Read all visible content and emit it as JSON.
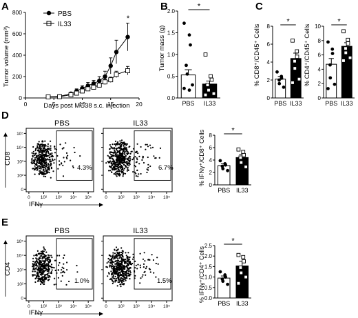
{
  "panel_letters": [
    "A",
    "B",
    "C",
    "D",
    "E"
  ],
  "chart_data": [
    {
      "panel": "A",
      "type": "line",
      "xlabel": "Days post MC38 s.c. injection",
      "ylabel": "Tumor volume (mm³)",
      "xlim": [
        0,
        20
      ],
      "xticks": [
        0,
        5,
        10,
        15,
        20
      ],
      "ylim": [
        0,
        800
      ],
      "yticks": [
        0,
        200,
        400,
        600,
        800
      ],
      "significance": [
        {
          "x": 18,
          "label": "*"
        }
      ],
      "series": [
        {
          "name": "PBS",
          "marker": "circle-filled",
          "x": [
            4,
            6,
            8,
            9,
            10,
            11,
            12,
            13,
            14,
            15,
            16,
            18
          ],
          "y": [
            10,
            15,
            40,
            65,
            90,
            115,
            135,
            160,
            200,
            300,
            430,
            570
          ],
          "err": [
            5,
            8,
            15,
            20,
            25,
            30,
            30,
            40,
            50,
            75,
            110,
            130
          ]
        },
        {
          "name": "IL33",
          "marker": "square-open",
          "x": [
            4,
            6,
            8,
            9,
            10,
            11,
            12,
            13,
            14,
            15,
            16,
            18
          ],
          "y": [
            10,
            12,
            30,
            45,
            65,
            85,
            100,
            120,
            150,
            170,
            220,
            255
          ],
          "err": [
            5,
            6,
            10,
            14,
            15,
            20,
            20,
            20,
            25,
            25,
            30,
            40
          ]
        }
      ]
    },
    {
      "panel": "B",
      "type": "bar",
      "ylabel": "Tumor mass (g)",
      "ylim": [
        0,
        2.0
      ],
      "yticks": [
        0.0,
        0.5,
        1.0,
        1.5,
        2.0
      ],
      "categories": [
        "PBS",
        "IL33"
      ],
      "values": [
        0.53,
        0.32
      ],
      "err": [
        0.12,
        0.07
      ],
      "fills": [
        "#ffffff",
        "#000000"
      ],
      "markers": [
        "circle-filled",
        "square-open"
      ],
      "points": [
        [
          1.72,
          1.45,
          1.22,
          0.75,
          0.55,
          0.3,
          0.22,
          0.18
        ],
        [
          1.0,
          0.5,
          0.42,
          0.3,
          0.18,
          0.1,
          0.07
        ]
      ],
      "significance": "*"
    },
    {
      "panel": "C1",
      "type": "bar",
      "ylabel": "% CD8⁺/CD45⁺ Cells",
      "ylim": [
        0,
        8
      ],
      "yticks": [
        0,
        2,
        4,
        6,
        8
      ],
      "categories": [
        "PBS",
        "IL33"
      ],
      "values": [
        2.1,
        4.4
      ],
      "err": [
        0.3,
        0.6
      ],
      "fills": [
        "#ffffff",
        "#000000"
      ],
      "markers": [
        "circle-filled",
        "square-open"
      ],
      "points": [
        [
          2.9,
          2.4,
          2.2,
          2.0,
          1.6,
          1.2
        ],
        [
          6.4,
          5.2,
          4.6,
          4.1,
          3.3,
          2.1,
          1.7
        ]
      ],
      "significance": "*"
    },
    {
      "panel": "C2",
      "type": "bar",
      "ylabel": "% CD4⁺/CD45⁺ Cells",
      "ylim": [
        0,
        10
      ],
      "yticks": [
        0,
        2,
        4,
        6,
        8,
        10
      ],
      "categories": [
        "PBS",
        "IL33"
      ],
      "values": [
        4.7,
        7.2
      ],
      "err": [
        0.8,
        0.5
      ],
      "fills": [
        "#ffffff",
        "#000000"
      ],
      "markers": [
        "circle-filled",
        "square-open"
      ],
      "points": [
        [
          7.8,
          6.8,
          6.2,
          4.6,
          2.8,
          1.9,
          1.3
        ],
        [
          9.3,
          8.1,
          7.6,
          6.9,
          6.3,
          5.6,
          5.2
        ]
      ],
      "significance": "*"
    },
    {
      "panel": "D",
      "type": "bar",
      "ylabel": "% IFNγ⁺/CD8⁺ Cells",
      "ylim": [
        0,
        8
      ],
      "yticks": [
        0,
        2,
        4,
        6,
        8
      ],
      "categories": [
        "PBS",
        "IL33"
      ],
      "values": [
        3.1,
        4.4
      ],
      "err": [
        0.3,
        0.5
      ],
      "fills": [
        "#ffffff",
        "#000000"
      ],
      "markers": [
        "circle-filled",
        "square-open"
      ],
      "points": [
        [
          3.9,
          3.4,
          3.2,
          3.0,
          2.6,
          2.3
        ],
        [
          5.7,
          5.3,
          4.8,
          4.4,
          3.6,
          2.9
        ]
      ],
      "significance": "*"
    },
    {
      "panel": "E",
      "type": "bar",
      "ylabel": "% IFNγ⁺/CD4⁺ Cells",
      "ylim": [
        0,
        2.5
      ],
      "yticks": [
        0.0,
        0.5,
        1.0,
        1.5,
        2.0,
        2.5
      ],
      "categories": [
        "PBS",
        "IL33"
      ],
      "values": [
        0.95,
        1.53
      ],
      "err": [
        0.1,
        0.22
      ],
      "fills": [
        "#ffffff",
        "#000000"
      ],
      "markers": [
        "circle-filled",
        "square-open"
      ],
      "points": [
        [
          1.25,
          1.1,
          1.0,
          0.9,
          0.8,
          0.65
        ],
        [
          2.05,
          1.95,
          1.75,
          1.45,
          1.2,
          1.0,
          0.7
        ]
      ],
      "significance": "*"
    }
  ],
  "flow_plots": [
    {
      "panel": "D",
      "title": "PBS",
      "percent": "4.3%",
      "ylabel": "CD8",
      "xlabel": "IFNγ"
    },
    {
      "panel": "D",
      "title": "IL33",
      "percent": "6.7%"
    },
    {
      "panel": "E",
      "title": "PBS",
      "percent": "1.0%",
      "ylabel": "CD4",
      "xlabel": "IFNγ"
    },
    {
      "panel": "E",
      "title": "IL33",
      "percent": "1.5%"
    }
  ],
  "flow_axis": {
    "tick_labels": [
      "0",
      "10²",
      "10³",
      "10⁴",
      "10⁵"
    ],
    "gate_fraction_x": [
      0.45,
      0.98
    ],
    "gate_fraction_y": [
      0.18,
      0.96
    ]
  }
}
